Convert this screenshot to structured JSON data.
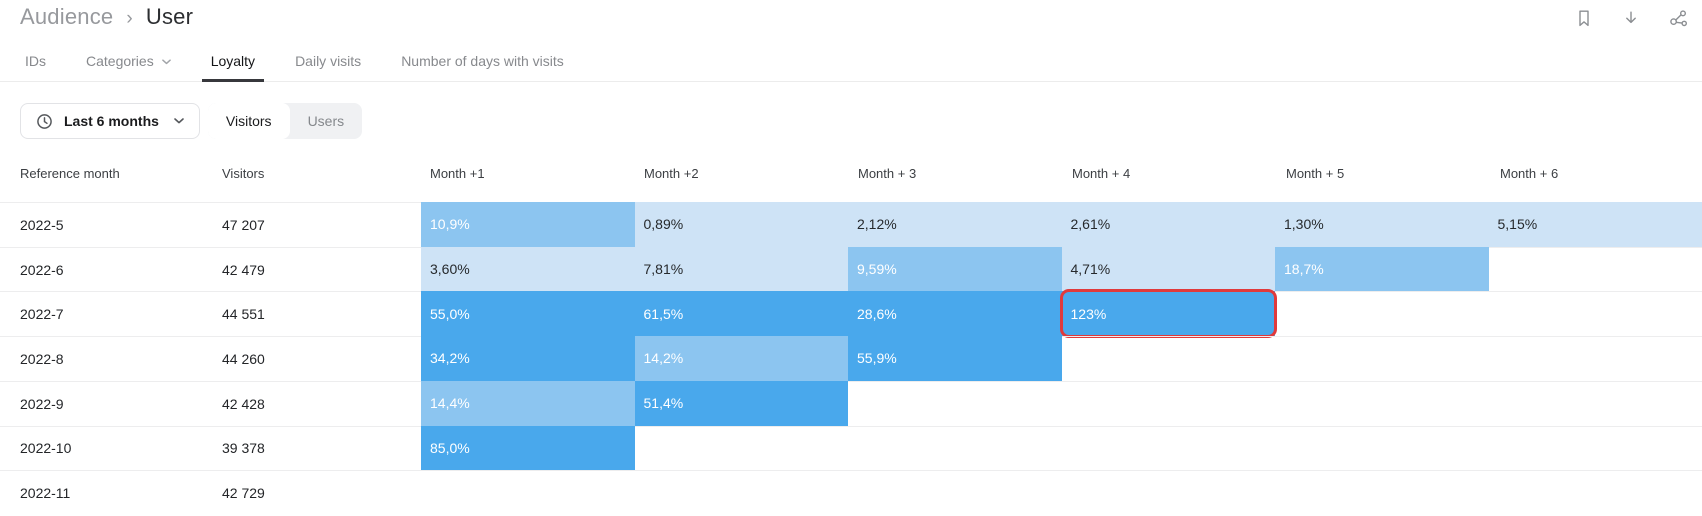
{
  "breadcrumb": {
    "section": "Audience",
    "separator": "›",
    "page": "User"
  },
  "topbar": {
    "icons": [
      "bookmark",
      "download",
      "share"
    ]
  },
  "tabs": {
    "items": [
      {
        "label": "IDs",
        "active": false,
        "has_dropdown": false
      },
      {
        "label": "Categories",
        "active": false,
        "has_dropdown": true
      },
      {
        "label": "Loyalty",
        "active": true,
        "has_dropdown": false
      },
      {
        "label": "Daily visits",
        "active": false,
        "has_dropdown": false
      },
      {
        "label": "Number of days with visits",
        "active": false,
        "has_dropdown": false
      }
    ]
  },
  "controls": {
    "date_range": {
      "icon": "clock-icon",
      "label": "Last 6 months"
    },
    "mode_toggle": {
      "options": [
        "Visitors",
        "Users"
      ],
      "selected": "Visitors"
    }
  },
  "table": {
    "columns": [
      "Reference month",
      "Visitors",
      "Month +1",
      "Month +2",
      "Month + 3",
      "Month + 4",
      "Month + 5",
      "Month + 6"
    ],
    "rows": [
      {
        "reference_month": "2022-5",
        "visitors": "47 207",
        "cells": [
          {
            "value": "10,9%",
            "tone": "mid"
          },
          {
            "value": "0,89%",
            "tone": "light"
          },
          {
            "value": "2,12%",
            "tone": "light"
          },
          {
            "value": "2,61%",
            "tone": "light"
          },
          {
            "value": "1,30%",
            "tone": "light"
          },
          {
            "value": "5,15%",
            "tone": "light"
          }
        ]
      },
      {
        "reference_month": "2022-6",
        "visitors": "42 479",
        "cells": [
          {
            "value": "3,60%",
            "tone": "light"
          },
          {
            "value": "7,81%",
            "tone": "light"
          },
          {
            "value": "9,59%",
            "tone": "mid"
          },
          {
            "value": "4,71%",
            "tone": "light"
          },
          {
            "value": "18,7%",
            "tone": "mid"
          }
        ]
      },
      {
        "reference_month": "2022-7",
        "visitors": "44 551",
        "cells": [
          {
            "value": "55,0%",
            "tone": "strong"
          },
          {
            "value": "61,5%",
            "tone": "strong"
          },
          {
            "value": "28,6%",
            "tone": "strong"
          },
          {
            "value": "123%",
            "tone": "strong",
            "highlighted": true
          }
        ]
      },
      {
        "reference_month": "2022-8",
        "visitors": "44 260",
        "cells": [
          {
            "value": "34,2%",
            "tone": "strong"
          },
          {
            "value": "14,2%",
            "tone": "mid"
          },
          {
            "value": "55,9%",
            "tone": "strong"
          }
        ]
      },
      {
        "reference_month": "2022-9",
        "visitors": "42 428",
        "cells": [
          {
            "value": "14,4%",
            "tone": "mid"
          },
          {
            "value": "51,4%",
            "tone": "strong"
          }
        ]
      },
      {
        "reference_month": "2022-10",
        "visitors": "39 378",
        "cells": [
          {
            "value": "85,0%",
            "tone": "strong"
          }
        ]
      },
      {
        "reference_month": "2022-11",
        "visitors": "42 729",
        "cells": []
      }
    ]
  },
  "colors": {
    "cell_light": "#cee3f6",
    "cell_mid": "#8cc5f0",
    "cell_strong": "#49a8ec",
    "highlight_border": "#e03a3c",
    "active_tab_underline": "#37383c"
  }
}
